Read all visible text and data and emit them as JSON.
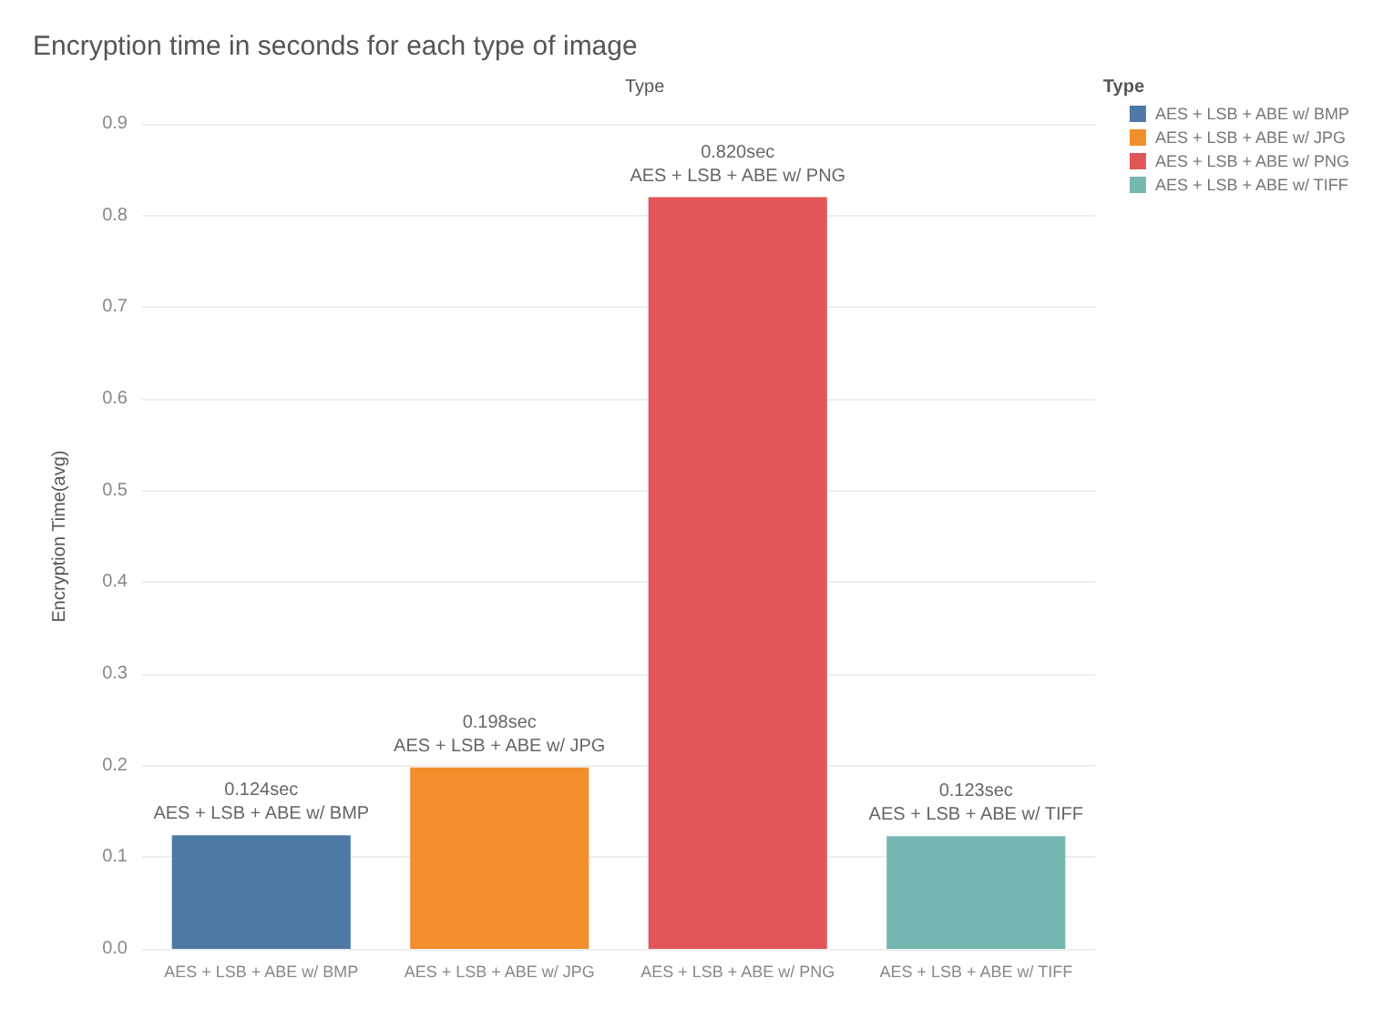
{
  "chart_data": {
    "type": "bar",
    "title": "Encryption time in seconds for each type of image",
    "xlabel": "Type",
    "ylabel": "Encryption Time(avg)",
    "legend_title": "Type",
    "categories": [
      "AES + LSB + ABE w/ BMP",
      "AES + LSB + ABE w/ JPG",
      "AES + LSB + ABE w/ PNG",
      "AES + LSB + ABE w/ TIFF"
    ],
    "series": [
      {
        "name": "AES + LSB + ABE w/ BMP",
        "color": "#4e79a7",
        "values": [
          0.124,
          null,
          null,
          null
        ],
        "value_labels": [
          "0.124sec",
          null,
          null,
          null
        ]
      },
      {
        "name": "AES + LSB + ABE w/ JPG",
        "color": "#f28e2b",
        "values": [
          null,
          0.198,
          null,
          null
        ],
        "value_labels": [
          null,
          "0.198sec",
          null,
          null
        ]
      },
      {
        "name": "AES + LSB + ABE w/ PNG",
        "color": "#e15759",
        "values": [
          null,
          null,
          0.82,
          null
        ],
        "value_labels": [
          null,
          null,
          "0.820sec",
          null
        ]
      },
      {
        "name": "AES + LSB + ABE w/ TIFF",
        "color": "#76b7b2",
        "values": [
          null,
          null,
          null,
          0.123
        ],
        "value_labels": [
          null,
          null,
          null,
          "0.123sec"
        ]
      }
    ],
    "ylim": [
      0,
      0.9
    ],
    "yticks": [
      "0.0",
      "0.1",
      "0.2",
      "0.3",
      "0.4",
      "0.5",
      "0.6",
      "0.7",
      "0.8",
      "0.9"
    ],
    "grid": "y",
    "legend": "top right"
  }
}
